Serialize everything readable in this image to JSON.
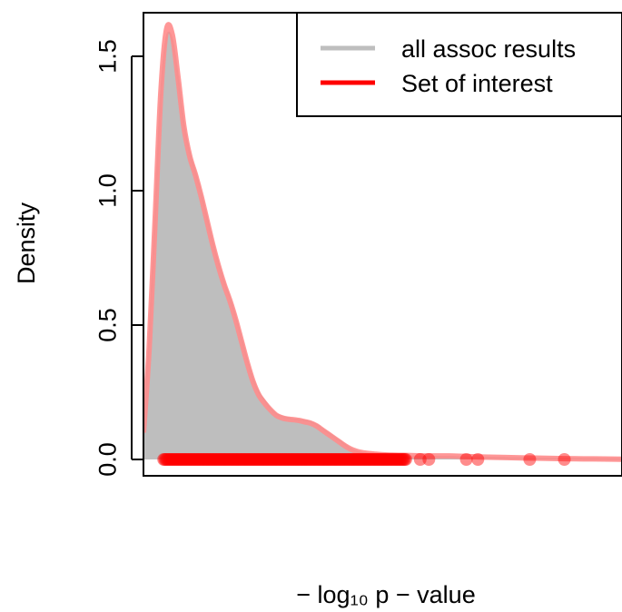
{
  "chart_data": {
    "type": "area",
    "xlabel": "− log₁₀ p − value",
    "ylabel": "Density",
    "xlim": [
      -0.3,
      8.0
    ],
    "ylim": [
      0,
      1.65
    ],
    "yticks": [
      "0.0",
      "0.5",
      "1.0",
      "1.5"
    ],
    "grid": false,
    "legend_position": "top-right",
    "legend": [
      {
        "label": "all assoc results",
        "color": "#bebebe"
      },
      {
        "label": "Set of interest",
        "color": "#ff0000"
      }
    ],
    "colors": {
      "all_fill": "#bebebe",
      "all_line": "#aaaaaa",
      "set_line": "#ff8c8c",
      "points": "#ff0000"
    },
    "series": [
      {
        "name": "all assoc results",
        "style": "filled-density",
        "x": [
          -0.3,
          -0.2,
          -0.1,
          0.0,
          0.1,
          0.2,
          0.3,
          0.4,
          0.5,
          0.6,
          0.7,
          0.8,
          0.9,
          1.0,
          1.1,
          1.2,
          1.3,
          1.4,
          1.5,
          1.6,
          1.7,
          1.8,
          1.9,
          2.0,
          2.1,
          2.2,
          2.3,
          2.4,
          2.5,
          2.6,
          2.7,
          2.8,
          2.9,
          3.0,
          3.1,
          3.2,
          3.3,
          3.4,
          3.5,
          3.6,
          3.7,
          3.8,
          3.9,
          4.0,
          4.2,
          4.4,
          4.6,
          4.8,
          5.0,
          5.3,
          5.6,
          6.0,
          6.5,
          7.0,
          7.5,
          8.0
        ],
        "y": [
          0.12,
          0.45,
          0.9,
          1.35,
          1.57,
          1.56,
          1.42,
          1.25,
          1.14,
          1.07,
          0.99,
          0.9,
          0.81,
          0.73,
          0.66,
          0.6,
          0.53,
          0.45,
          0.37,
          0.3,
          0.25,
          0.22,
          0.19,
          0.17,
          0.16,
          0.155,
          0.15,
          0.148,
          0.145,
          0.14,
          0.13,
          0.115,
          0.1,
          0.085,
          0.07,
          0.055,
          0.04,
          0.03,
          0.024,
          0.02,
          0.017,
          0.015,
          0.014,
          0.013,
          0.012,
          0.011,
          0.01,
          0.01,
          0.01,
          0.008,
          0.007,
          0.006,
          0.004,
          0.003,
          0.002,
          0.001
        ]
      },
      {
        "name": "Set of interest",
        "style": "line",
        "x": [
          -0.3,
          -0.2,
          -0.1,
          0.0,
          0.1,
          0.2,
          0.3,
          0.4,
          0.5,
          0.6,
          0.7,
          0.8,
          0.9,
          1.0,
          1.1,
          1.2,
          1.3,
          1.4,
          1.5,
          1.6,
          1.7,
          1.8,
          1.9,
          2.0,
          2.1,
          2.2,
          2.3,
          2.4,
          2.5,
          2.6,
          2.7,
          2.8,
          2.9,
          3.0,
          3.1,
          3.2,
          3.3,
          3.4,
          3.5,
          3.6,
          3.7,
          3.8,
          3.9,
          4.0,
          4.2,
          4.4,
          4.6,
          4.8,
          5.0,
          5.3,
          5.6,
          6.0,
          6.5,
          7.0,
          7.5,
          8.0
        ],
        "y": [
          0.1,
          0.42,
          0.88,
          1.36,
          1.6,
          1.58,
          1.42,
          1.24,
          1.13,
          1.06,
          0.98,
          0.89,
          0.8,
          0.72,
          0.65,
          0.59,
          0.52,
          0.44,
          0.36,
          0.29,
          0.24,
          0.21,
          0.185,
          0.165,
          0.155,
          0.15,
          0.148,
          0.145,
          0.14,
          0.135,
          0.125,
          0.11,
          0.095,
          0.08,
          0.065,
          0.05,
          0.038,
          0.03,
          0.025,
          0.022,
          0.02,
          0.018,
          0.017,
          0.016,
          0.015,
          0.014,
          0.013,
          0.013,
          0.013,
          0.011,
          0.009,
          0.007,
          0.005,
          0.003,
          0.002,
          0.001
        ]
      }
    ],
    "points": {
      "name": "Set of interest",
      "y": 0,
      "x_dense_range": [
        0.05,
        4.25
      ],
      "x": [
        4.5,
        4.65,
        5.3,
        5.5,
        6.4,
        7.0
      ]
    }
  }
}
